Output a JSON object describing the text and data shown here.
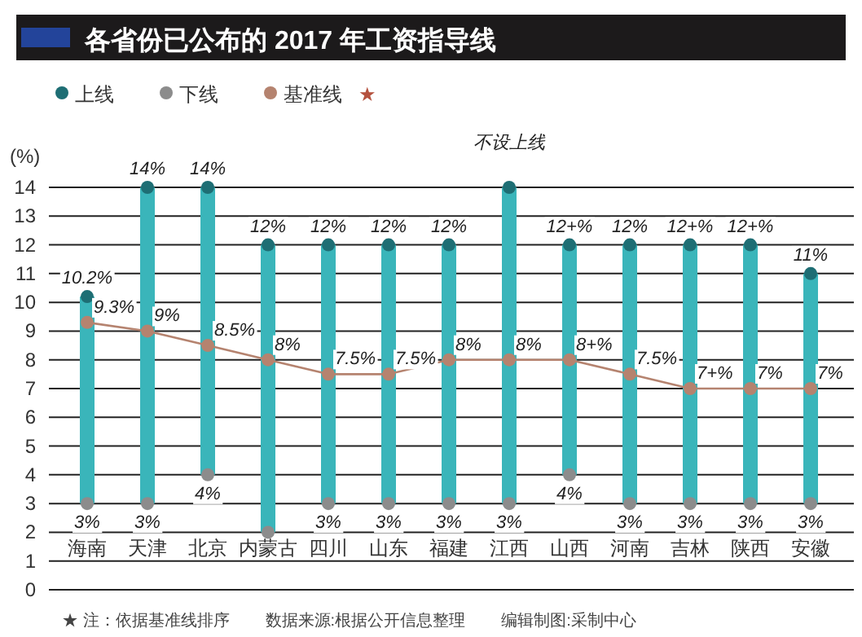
{
  "chart_data": {
    "type": "bar",
    "title": "各省份已公布的 2017 年工资指导线",
    "ylabel": "(%)",
    "categories": [
      "海南",
      "天津",
      "北京",
      "内蒙古",
      "四川",
      "山东",
      "福建",
      "江西",
      "山西",
      "河南",
      "吉林",
      "陕西",
      "安徽"
    ],
    "ylim": [
      0,
      14
    ],
    "yticks": [
      0,
      1,
      2,
      3,
      4,
      5,
      6,
      7,
      8,
      9,
      10,
      11,
      12,
      13,
      14
    ],
    "grid": "y",
    "legend": "top left",
    "series": [
      {
        "color": "#3ab5ba",
        "base": [
          3,
          3,
          4,
          2,
          3,
          3,
          3,
          3,
          4,
          3,
          3,
          3,
          3
        ],
        "values": [
          7.2,
          11,
          10,
          10,
          9,
          9,
          9,
          11,
          8,
          9,
          9,
          9,
          8
        ]
      },
      {
        "type": "scatter",
        "name": "上线",
        "color": "#1e6e74",
        "marker": "circle",
        "values": [
          10.2,
          14,
          14,
          12,
          12,
          12,
          12,
          14,
          12,
          12,
          12,
          12,
          11
        ],
        "value_labels": [
          "10.2%",
          "14%",
          "14%",
          "12%",
          "12%",
          "12%",
          "12%",
          "不设上线",
          "12+%",
          "12%",
          "12+%",
          "12+%",
          "11%"
        ]
      },
      {
        "type": "scatter",
        "name": "下线",
        "color": "#8c8c8c",
        "marker": "circle",
        "values": [
          3,
          3,
          4,
          2,
          3,
          3,
          3,
          3,
          4,
          3,
          3,
          3,
          3
        ],
        "value_labels": [
          "3%",
          "3%",
          "4%",
          null,
          "3%",
          "3%",
          "3%",
          "3%",
          "4%",
          "3%",
          "3%",
          "3%",
          "3%"
        ]
      },
      {
        "type": "line",
        "name": "基准线",
        "color": "#b5836f",
        "marker": "circle",
        "values": [
          9.3,
          9,
          8.5,
          8,
          7.5,
          7.5,
          8,
          8,
          8,
          7.5,
          7,
          7,
          7
        ],
        "value_labels": [
          "9.3%",
          "9%",
          "8.5%",
          "8%",
          "7.5%",
          "7.5%",
          "8%",
          "8%",
          "8+%",
          "7.5%",
          "7+%",
          "7%",
          "7%"
        ]
      }
    ],
    "annotations": [
      "★",
      "★ 注：依据基准线排序",
      "数据来源:根据公开信息整理",
      "编辑制图:采制中心"
    ]
  }
}
